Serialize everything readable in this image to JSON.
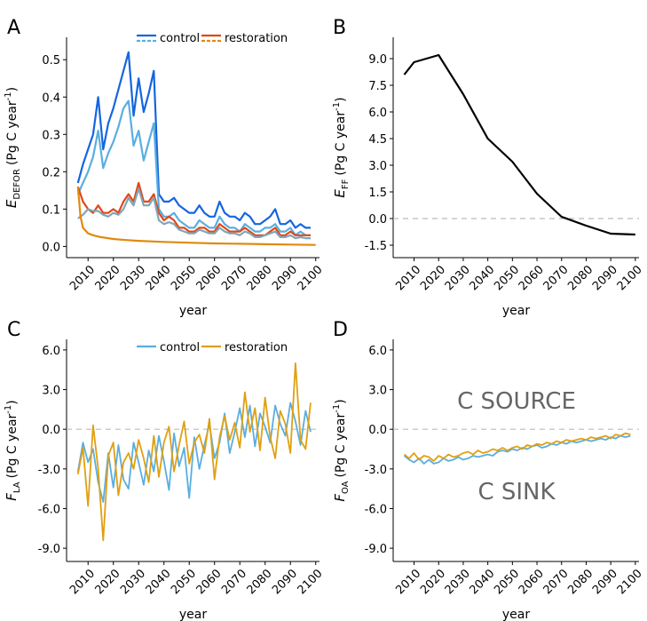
{
  "colors": {
    "dark_blue": "#1565e0",
    "light_blue": "#5aaee0",
    "red_orange": "#e0481a",
    "orange": "#e08a10",
    "gold": "#e0a010",
    "black": "#000000",
    "zero_line": "#bbbbbb",
    "annotation": "#666666"
  },
  "chart_data": [
    {
      "panel": "A",
      "type": "line",
      "xlabel": "year",
      "ylabel": "E",
      "ylabel_sub": "DEFOR",
      "ylabel_unit": "(Pg C year",
      "ylabel_sup": "-1",
      "ylabel_close": ")",
      "xticks": [
        2010,
        2020,
        2030,
        2040,
        2050,
        2060,
        2070,
        2080,
        2090,
        2100
      ],
      "yticks": [
        0.0,
        0.1,
        0.2,
        0.3,
        0.4,
        0.5
      ],
      "ytick_labels": [
        "0.0",
        "0.1",
        "0.2",
        "0.3",
        "0.4",
        "0.5"
      ],
      "xlim": [
        2001.5,
        2101.5
      ],
      "ylim": [
        -0.03,
        0.56
      ],
      "legend": {
        "position": "top",
        "entries": [
          "control",
          "restoration"
        ]
      },
      "series": [
        {
          "name": "control",
          "style": "solid",
          "color": "#1565e0",
          "x": [
            2006,
            2008,
            2010,
            2012,
            2014,
            2016,
            2018,
            2020,
            2022,
            2024,
            2026,
            2028,
            2030,
            2032,
            2034,
            2036,
            2038,
            2040,
            2042,
            2044,
            2046,
            2048,
            2050,
            2052,
            2054,
            2056,
            2058,
            2060,
            2062,
            2064,
            2066,
            2068,
            2070,
            2072,
            2074,
            2076,
            2078,
            2080,
            2082,
            2084,
            2086,
            2088,
            2090,
            2092,
            2094,
            2096,
            2098
          ],
          "y": [
            0.17,
            0.22,
            0.26,
            0.3,
            0.4,
            0.26,
            0.33,
            0.37,
            0.42,
            0.47,
            0.52,
            0.35,
            0.45,
            0.36,
            0.41,
            0.47,
            0.14,
            0.12,
            0.12,
            0.13,
            0.11,
            0.1,
            0.09,
            0.09,
            0.11,
            0.09,
            0.08,
            0.08,
            0.12,
            0.09,
            0.08,
            0.08,
            0.07,
            0.09,
            0.08,
            0.06,
            0.06,
            0.07,
            0.08,
            0.1,
            0.06,
            0.06,
            0.07,
            0.05,
            0.06,
            0.05,
            0.05
          ]
        },
        {
          "name": "control (dashed)",
          "style": "solid",
          "color": "#5aaee0",
          "x": [
            2006,
            2008,
            2010,
            2012,
            2014,
            2016,
            2018,
            2020,
            2022,
            2024,
            2026,
            2028,
            2030,
            2032,
            2034,
            2036,
            2038,
            2040,
            2042,
            2044,
            2046,
            2048,
            2050,
            2052,
            2054,
            2056,
            2058,
            2060,
            2062,
            2064,
            2066,
            2068,
            2070,
            2072,
            2074,
            2076,
            2078,
            2080,
            2082,
            2084,
            2086,
            2088,
            2090,
            2092,
            2094,
            2096,
            2098
          ],
          "y": [
            0.14,
            0.17,
            0.2,
            0.24,
            0.31,
            0.21,
            0.25,
            0.28,
            0.32,
            0.37,
            0.39,
            0.27,
            0.31,
            0.23,
            0.28,
            0.33,
            0.1,
            0.08,
            0.08,
            0.09,
            0.07,
            0.06,
            0.05,
            0.05,
            0.07,
            0.06,
            0.05,
            0.05,
            0.08,
            0.06,
            0.05,
            0.05,
            0.04,
            0.06,
            0.05,
            0.04,
            0.04,
            0.05,
            0.05,
            0.06,
            0.04,
            0.04,
            0.05,
            0.03,
            0.04,
            0.03,
            0.03
          ]
        },
        {
          "name": "restoration",
          "style": "solid",
          "color": "#e0481a",
          "x": [
            2006,
            2008,
            2010,
            2012,
            2014,
            2016,
            2018,
            2020,
            2022,
            2024,
            2026,
            2028,
            2030,
            2032,
            2034,
            2036,
            2038,
            2040,
            2042,
            2044,
            2046,
            2048,
            2050,
            2052,
            2054,
            2056,
            2058,
            2060,
            2062,
            2064,
            2066,
            2068,
            2070,
            2072,
            2074,
            2076,
            2078,
            2080,
            2082,
            2084,
            2086,
            2088,
            2090,
            2092,
            2094,
            2096,
            2098
          ],
          "y": [
            0.16,
            0.12,
            0.1,
            0.09,
            0.11,
            0.09,
            0.09,
            0.1,
            0.09,
            0.12,
            0.14,
            0.12,
            0.17,
            0.12,
            0.12,
            0.14,
            0.09,
            0.07,
            0.08,
            0.07,
            0.05,
            0.05,
            0.04,
            0.04,
            0.05,
            0.05,
            0.04,
            0.04,
            0.06,
            0.05,
            0.04,
            0.04,
            0.04,
            0.05,
            0.04,
            0.03,
            0.03,
            0.03,
            0.04,
            0.05,
            0.03,
            0.03,
            0.04,
            0.03,
            0.03,
            0.03,
            0.03
          ]
        },
        {
          "name": "restoration (dashed)",
          "style": "solid",
          "color": "#7fa6b8",
          "x": [
            2006,
            2008,
            2010,
            2012,
            2014,
            2016,
            2018,
            2020,
            2022,
            2024,
            2026,
            2028,
            2030,
            2032,
            2034,
            2036,
            2038,
            2040,
            2042,
            2044,
            2046,
            2048,
            2050,
            2052,
            2054,
            2056,
            2058,
            2060,
            2062,
            2064,
            2066,
            2068,
            2070,
            2072,
            2074,
            2076,
            2078,
            2080,
            2082,
            2084,
            2086,
            2088,
            2090,
            2092,
            2094,
            2096,
            2098
          ],
          "y": [
            0.075,
            0.085,
            0.1,
            0.095,
            0.095,
            0.085,
            0.08,
            0.09,
            0.085,
            0.1,
            0.13,
            0.11,
            0.155,
            0.11,
            0.11,
            0.13,
            0.07,
            0.06,
            0.065,
            0.06,
            0.045,
            0.04,
            0.035,
            0.035,
            0.045,
            0.04,
            0.035,
            0.035,
            0.05,
            0.04,
            0.035,
            0.035,
            0.03,
            0.04,
            0.035,
            0.025,
            0.025,
            0.03,
            0.035,
            0.04,
            0.025,
            0.025,
            0.03,
            0.022,
            0.025,
            0.022,
            0.022
          ]
        },
        {
          "name": "restoration (orange)",
          "style": "solid",
          "color": "#e08a10",
          "x": [
            2006,
            2007,
            2008,
            2010,
            2012,
            2015,
            2020,
            2025,
            2030,
            2040,
            2050,
            2060,
            2070,
            2080,
            2090,
            2100
          ],
          "y": [
            0.16,
            0.08,
            0.05,
            0.035,
            0.03,
            0.025,
            0.02,
            0.017,
            0.015,
            0.012,
            0.01,
            0.008,
            0.007,
            0.006,
            0.005,
            0.004
          ]
        }
      ]
    },
    {
      "panel": "B",
      "type": "line",
      "xlabel": "year",
      "ylabel": "E",
      "ylabel_sub": "FF",
      "ylabel_unit": "(Pg C year",
      "ylabel_sup": "-1",
      "ylabel_close": ")",
      "xticks": [
        2010,
        2020,
        2030,
        2040,
        2050,
        2060,
        2070,
        2080,
        2090,
        2100
      ],
      "yticks": [
        -1.5,
        0.0,
        1.5,
        3.0,
        4.5,
        6.0,
        7.5,
        9.0
      ],
      "ytick_labels": [
        "-1.5",
        "0.0",
        "1.5",
        "3.0",
        "4.5",
        "6.0",
        "7.5",
        "9.0"
      ],
      "xlim": [
        2001.5,
        2101.5
      ],
      "ylim": [
        -2.2,
        10.2
      ],
      "zero_line": true,
      "series": [
        {
          "name": "EFF",
          "color": "#000000",
          "x": [
            2006,
            2010,
            2020,
            2030,
            2040,
            2050,
            2060,
            2070,
            2080,
            2090,
            2100
          ],
          "y": [
            8.1,
            8.8,
            9.2,
            7.0,
            4.5,
            3.2,
            1.4,
            0.1,
            -0.4,
            -0.85,
            -0.9
          ]
        }
      ]
    },
    {
      "panel": "C",
      "type": "line",
      "xlabel": "year",
      "ylabel": "F",
      "ylabel_sub": "LA",
      "ylabel_unit": "(Pg C year",
      "ylabel_sup": "-1",
      "ylabel_close": ")",
      "xticks": [
        2010,
        2020,
        2030,
        2040,
        2050,
        2060,
        2070,
        2080,
        2090,
        2100
      ],
      "yticks": [
        -9.0,
        -6.0,
        -3.0,
        0.0,
        3.0,
        6.0
      ],
      "ytick_labels": [
        "-9.0",
        "-6.0",
        "-3.0",
        "0.0",
        "3.0",
        "6.0"
      ],
      "xlim": [
        2001.5,
        2101.5
      ],
      "ylim": [
        -10.0,
        6.8
      ],
      "zero_line": true,
      "legend": {
        "position": "top",
        "entries": [
          "control",
          "restoration"
        ]
      },
      "series": [
        {
          "name": "control",
          "color": "#5aaee0",
          "x": [
            2006,
            2008,
            2010,
            2012,
            2014,
            2016,
            2018,
            2020,
            2022,
            2024,
            2026,
            2028,
            2030,
            2032,
            2034,
            2036,
            2038,
            2040,
            2042,
            2044,
            2046,
            2048,
            2050,
            2052,
            2054,
            2056,
            2058,
            2060,
            2062,
            2064,
            2066,
            2068,
            2070,
            2072,
            2074,
            2076,
            2078,
            2080,
            2082,
            2084,
            2086,
            2088,
            2090,
            2092,
            2094,
            2096,
            2098
          ],
          "y": [
            -3.2,
            -1.0,
            -2.5,
            -1.5,
            -4.0,
            -5.5,
            -1.8,
            -4.4,
            -1.2,
            -3.8,
            -4.5,
            -1.0,
            -2.5,
            -4.2,
            -1.6,
            -3.2,
            -0.5,
            -2.4,
            -4.6,
            -0.3,
            -2.8,
            -1.4,
            -5.2,
            -0.6,
            -3.0,
            -1.2,
            0.4,
            -2.2,
            -1.0,
            1.2,
            -1.8,
            -0.2,
            1.6,
            -0.6,
            1.8,
            -1.3,
            1.2,
            0.2,
            -1.0,
            1.8,
            0.4,
            -0.5,
            2.0,
            0.6,
            -1.2,
            1.4,
            -0.2
          ]
        },
        {
          "name": "restoration",
          "color": "#e0a010",
          "x": [
            2006,
            2008,
            2010,
            2012,
            2014,
            2016,
            2018,
            2020,
            2022,
            2024,
            2026,
            2028,
            2030,
            2032,
            2034,
            2036,
            2038,
            2040,
            2042,
            2044,
            2046,
            2048,
            2050,
            2052,
            2054,
            2056,
            2058,
            2060,
            2062,
            2064,
            2066,
            2068,
            2070,
            2072,
            2074,
            2076,
            2078,
            2080,
            2082,
            2084,
            2086,
            2088,
            2090,
            2092,
            2094,
            2096,
            2098
          ],
          "y": [
            -3.4,
            -1.4,
            -5.8,
            0.3,
            -3.0,
            -8.4,
            -2.0,
            -1.0,
            -5.0,
            -2.5,
            -1.8,
            -3.0,
            -0.8,
            -2.2,
            -4.0,
            -0.5,
            -3.6,
            -1.0,
            0.2,
            -3.2,
            -1.2,
            0.6,
            -2.6,
            -1.0,
            -0.4,
            -1.8,
            0.8,
            -3.8,
            -0.6,
            1.0,
            -0.8,
            0.5,
            -1.4,
            2.8,
            -0.2,
            1.6,
            -1.6,
            2.4,
            -0.6,
            -2.2,
            1.4,
            0.4,
            -1.8,
            5.0,
            -0.8,
            -1.5,
            2.0
          ]
        }
      ]
    },
    {
      "panel": "D",
      "type": "line",
      "xlabel": "year",
      "ylabel": "F",
      "ylabel_sub": "OA",
      "ylabel_unit": "(Pg C year",
      "ylabel_sup": "-1",
      "ylabel_close": ")",
      "xticks": [
        2010,
        2020,
        2030,
        2040,
        2050,
        2060,
        2070,
        2080,
        2090,
        2100
      ],
      "yticks": [
        -9.0,
        -6.0,
        -3.0,
        0.0,
        3.0,
        6.0
      ],
      "ytick_labels": [
        "-9.0",
        "-6.0",
        "-3.0",
        "0.0",
        "3.0",
        "6.0"
      ],
      "xlim": [
        2001.5,
        2101.5
      ],
      "ylim": [
        -10.0,
        6.8
      ],
      "zero_line": true,
      "annotations": [
        "C SOURCE",
        "C SINK"
      ],
      "series": [
        {
          "name": "control",
          "color": "#5aaee0",
          "x": [
            2006,
            2008,
            2010,
            2012,
            2014,
            2016,
            2018,
            2020,
            2022,
            2024,
            2026,
            2028,
            2030,
            2032,
            2034,
            2036,
            2038,
            2040,
            2042,
            2044,
            2046,
            2048,
            2050,
            2052,
            2054,
            2056,
            2058,
            2060,
            2062,
            2064,
            2066,
            2068,
            2070,
            2072,
            2074,
            2076,
            2078,
            2080,
            2082,
            2084,
            2086,
            2088,
            2090,
            2092,
            2094,
            2096,
            2098
          ],
          "y": [
            -2.0,
            -2.3,
            -2.5,
            -2.2,
            -2.6,
            -2.3,
            -2.6,
            -2.5,
            -2.2,
            -2.4,
            -2.3,
            -2.1,
            -2.3,
            -2.2,
            -2.0,
            -2.1,
            -2.0,
            -1.9,
            -2.0,
            -1.7,
            -1.6,
            -1.7,
            -1.5,
            -1.6,
            -1.4,
            -1.5,
            -1.3,
            -1.2,
            -1.4,
            -1.3,
            -1.1,
            -1.2,
            -1.0,
            -1.1,
            -0.9,
            -1.0,
            -0.9,
            -0.8,
            -0.9,
            -0.8,
            -0.7,
            -0.8,
            -0.6,
            -0.7,
            -0.5,
            -0.6,
            -0.5
          ]
        },
        {
          "name": "restoration",
          "color": "#e0a010",
          "x": [
            2006,
            2008,
            2010,
            2012,
            2014,
            2016,
            2018,
            2020,
            2022,
            2024,
            2026,
            2028,
            2030,
            2032,
            2034,
            2036,
            2038,
            2040,
            2042,
            2044,
            2046,
            2048,
            2050,
            2052,
            2054,
            2056,
            2058,
            2060,
            2062,
            2064,
            2066,
            2068,
            2070,
            2072,
            2074,
            2076,
            2078,
            2080,
            2082,
            2084,
            2086,
            2088,
            2090,
            2092,
            2094,
            2096,
            2098
          ],
          "y": [
            -1.9,
            -2.2,
            -1.8,
            -2.3,
            -2.0,
            -2.1,
            -2.4,
            -2.0,
            -2.2,
            -1.9,
            -2.1,
            -2.0,
            -1.8,
            -1.7,
            -1.9,
            -1.6,
            -1.8,
            -1.7,
            -1.5,
            -1.6,
            -1.4,
            -1.6,
            -1.4,
            -1.3,
            -1.5,
            -1.2,
            -1.3,
            -1.1,
            -1.2,
            -1.0,
            -1.1,
            -0.9,
            -1.0,
            -0.8,
            -0.9,
            -0.8,
            -0.7,
            -0.8,
            -0.6,
            -0.7,
            -0.6,
            -0.5,
            -0.7,
            -0.4,
            -0.5,
            -0.3,
            -0.4
          ]
        }
      ]
    }
  ]
}
